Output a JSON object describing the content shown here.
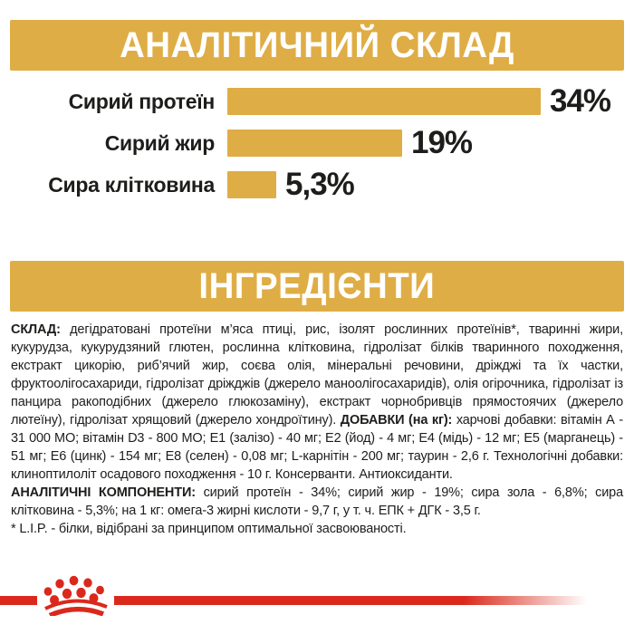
{
  "colors": {
    "gold": "#DFAD45",
    "red": "#DA291C",
    "text": "#1D1D1B",
    "banner_text": "#FFFFFF"
  },
  "header_banner": {
    "title": "АНАЛІТИЧНИЙ СКЛАД"
  },
  "chart_data": {
    "type": "bar",
    "orientation": "horizontal",
    "title": "АНАЛІТИЧНИЙ СКЛАД",
    "categories": [
      "Сирий протеїн",
      "Сирий жир",
      "Сира клітковина"
    ],
    "values": [
      34,
      19,
      5.3
    ],
    "value_labels": [
      "34%",
      "19%",
      "5,3%"
    ],
    "bar_color": "#DFAD45",
    "xlabel": "",
    "ylabel": "",
    "xlim": [
      0,
      34
    ],
    "grid": false,
    "legend": false
  },
  "ingredients_banner": {
    "title": "ІНГРЕДІЄНТИ"
  },
  "body": {
    "composition_label": "СКЛАД:",
    "composition_text": " дегідратовані протеїни м’яса птиці, рис, ізолят рослинних протеїнів*, тваринні жири, кукурудза, кукурудзяний глютен, рослинна клітковина, гідролізат білків тваринного походження, екстракт цикорію, риб’ячий жир, соєва олія, мінеральні речовини, дріжджі та їх частки, фруктоолігосахариди, гідролізат дріжджів (джерело маноолігосахаридів), олія огірочника, гідролізат із панцира ракоподібних (джерело глюкозаміну), екстракт чорнобривців прямостоячих (джерело лютеїну), гідролізат хрящовий (джерело хондроїтину). ",
    "additives_label": "ДОБАВКИ (на кг):",
    "additives_text": " харчові добавки: вітамін А - 31 000 МО; вітамін D3 - 800 МО; Е1 (залізо) - 40 мг; Е2 (йод) - 4 мг; Е4 (мідь) - 12 мг; Е5 (марганець) - 51 мг; Е6 (цинк) - 154 мг; Е8 (селен) - 0,08 мг; L-карнітін - 200 мг; таурин - 2,6 г. Технологічні добавки: клиноптилоліт осадового походження - 10 г. Консерванти. Антиоксиданти.",
    "analytical_label": "АНАЛІТИЧНІ КОМПОНЕНТИ:",
    "analytical_text": " сирий протеїн - 34%; сирий жир - 19%; сира зола - 6,8%; сира клітковина - 5,3%; на 1 кг: омега-3 жирні кислоти - 9,7 г, у т. ч. ЕПК + ДГК - 3,5 г.",
    "footnote": "* L.I.P. - білки, відібрані за принципом оптимальної засвоюваності."
  },
  "footer": {
    "logo_icon": "royal-canin-crown-icon"
  }
}
